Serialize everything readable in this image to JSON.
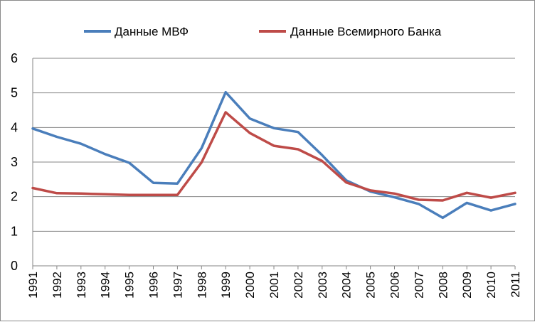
{
  "chart_data": {
    "type": "line",
    "title": "",
    "xlabel": "",
    "ylabel": "",
    "x": [
      "1991",
      "1992",
      "1993",
      "1994",
      "1995",
      "1996",
      "1997",
      "1998",
      "1999",
      "2000",
      "2001",
      "2002",
      "2003",
      "2004",
      "2005",
      "2006",
      "2007",
      "2008",
      "2009",
      "2010",
      "2011"
    ],
    "ylim": [
      0,
      6
    ],
    "yticks": [
      "0",
      "1",
      "2",
      "3",
      "4",
      "5",
      "6"
    ],
    "grid": true,
    "legend_position": "top",
    "series": [
      {
        "name": "Данные МВФ",
        "color": "#4a7ebb",
        "values": [
          3.97,
          3.73,
          3.53,
          3.23,
          2.98,
          2.4,
          2.38,
          3.4,
          5.02,
          4.26,
          3.98,
          3.87,
          3.2,
          2.47,
          2.15,
          1.98,
          1.79,
          1.39,
          1.82,
          1.6,
          1.79
        ]
      },
      {
        "name": "Данные Всемирного Банка",
        "color": "#be4b48",
        "values": [
          2.25,
          2.1,
          2.09,
          2.07,
          2.05,
          2.05,
          2.05,
          2.99,
          4.44,
          3.84,
          3.47,
          3.37,
          3.03,
          2.41,
          2.18,
          2.09,
          1.91,
          1.89,
          2.11,
          1.97,
          2.11
        ]
      }
    ]
  }
}
